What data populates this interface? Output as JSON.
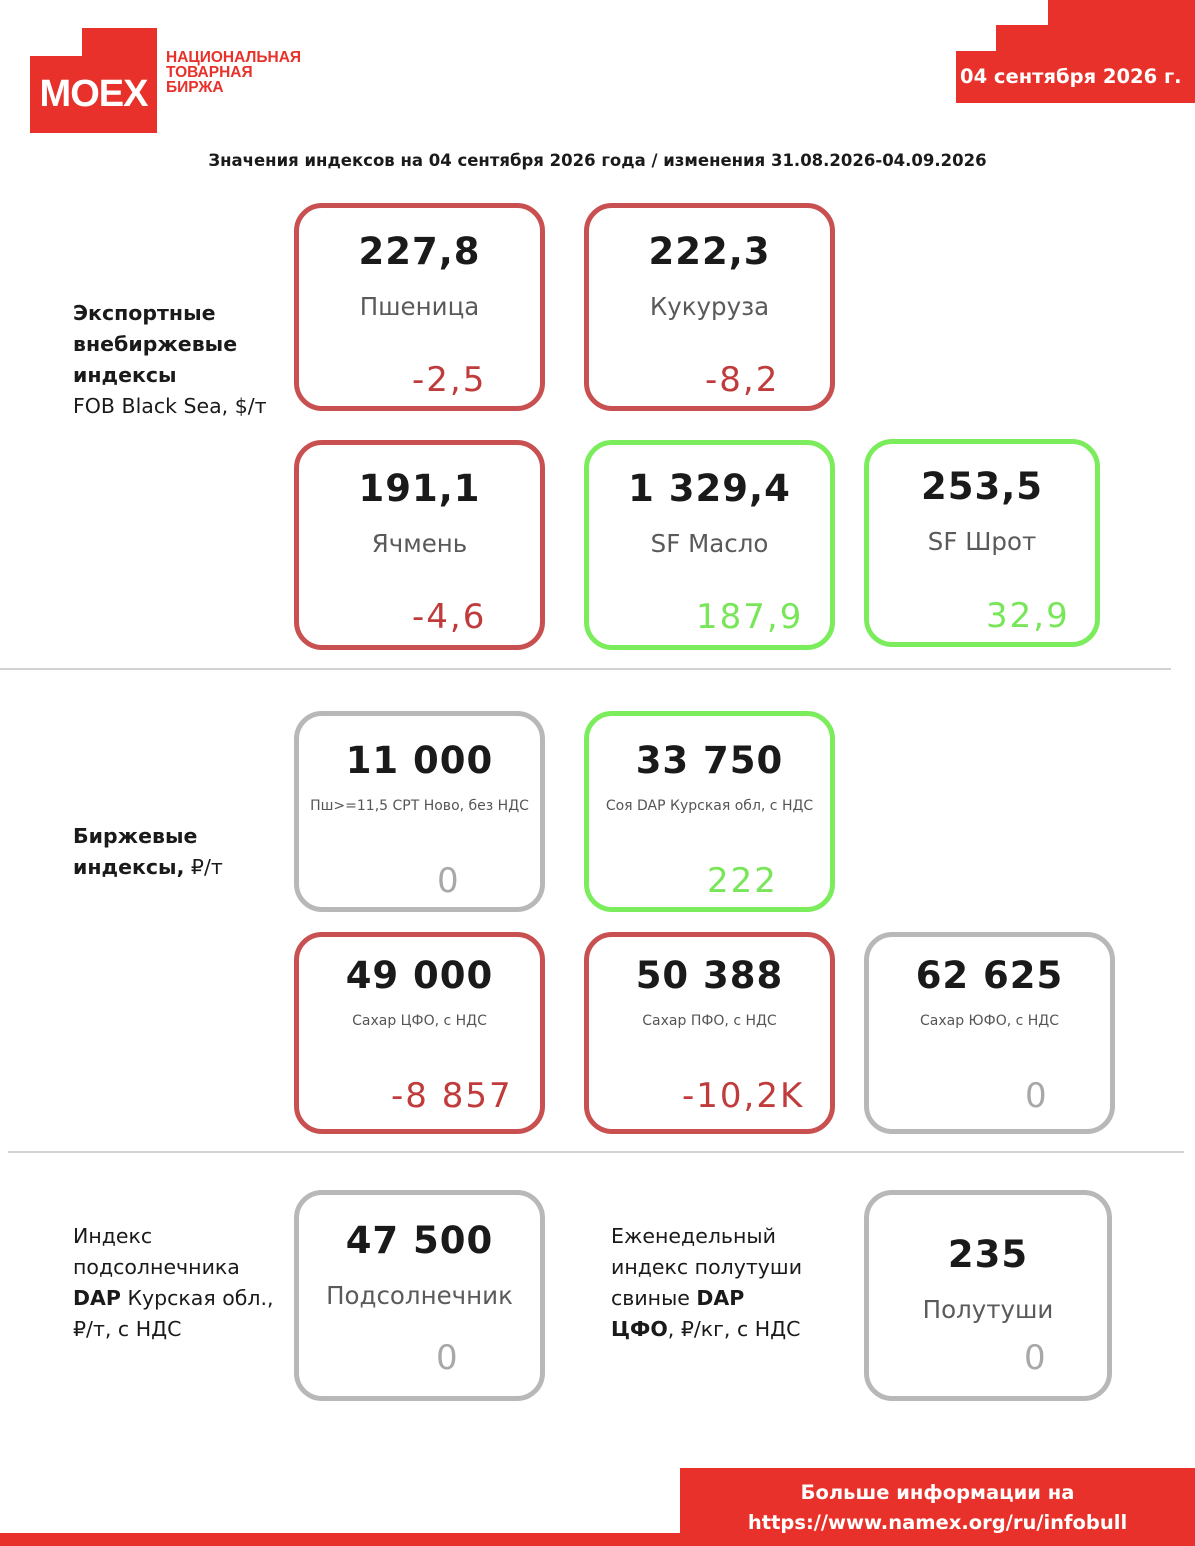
{
  "header": {
    "logo": {
      "brand": "MOEX",
      "line1": "НАЦИОНАЛЬНАЯ",
      "line2": "ТОВАРНАЯ",
      "line3": "БИРЖА"
    },
    "date": "04 сентября 2026 г."
  },
  "subtitle": "Значения индексов на 04 сентября 2026 года / изменения 31.08.2026-04.09.2026",
  "sections": {
    "export": {
      "line1": "Экспортные",
      "line2": "внебиржевые",
      "line3": "индексы",
      "line4": "FOB Black Sea, $/т"
    },
    "exchange": {
      "line1": "Биржевые",
      "line2": "индексы,",
      "unit": " ₽/т"
    },
    "sunflower": {
      "line1": "Индекс",
      "line2": "подсолнечника",
      "bold3": "DAP",
      "rest3": " Курская обл.,",
      "line4": "₽/т, с НДС"
    },
    "pork": {
      "line1": "Еженедельный",
      "line2": "индекс полутуши",
      "rest3": "свиные ",
      "bold3": "DAP",
      "bold4": "ЦФО",
      "rest4": ", ₽/кг, с НДС"
    }
  },
  "cards": {
    "wheat": {
      "value": "227,8",
      "name": "Пшеница",
      "change": "-2,5",
      "status": "down"
    },
    "corn": {
      "value": "222,3",
      "name": "Кукуруза",
      "change": "-8,2",
      "status": "down"
    },
    "barley": {
      "value": "191,1",
      "name": "Ячмень",
      "change": "-4,6",
      "status": "down"
    },
    "sf_oil": {
      "value": "1 329,4",
      "name": "SF Масло",
      "change": "187,9",
      "status": "up"
    },
    "sf_meal": {
      "value": "253,5",
      "name": "SF Шрот",
      "change": "32,9",
      "status": "up"
    },
    "wheat_ex": {
      "value": "11 000",
      "name": "Пш>=11,5 СРТ Ново, без НДС",
      "change": "0",
      "status": "flat"
    },
    "soy_ex": {
      "value": "33 750",
      "name": "Соя DAP Курская обл, с НДС",
      "change": "222",
      "status": "up"
    },
    "sugar_cfo": {
      "value": "49 000",
      "name": "Сахар ЦФО, с НДС",
      "change": "-8 857",
      "status": "down"
    },
    "sugar_pfo": {
      "value": "50 388",
      "name": "Сахар ПФО, с НДС",
      "change": "-10,2K",
      "status": "down"
    },
    "sugar_yufo": {
      "value": "62 625",
      "name": "Сахар ЮФО, с НДС",
      "change": "0",
      "status": "flat"
    },
    "sunflower": {
      "value": "47 500",
      "name": "Подсолнечник",
      "change": "0",
      "status": "flat"
    },
    "pork": {
      "value": "235",
      "name": "Полутуши",
      "change": "0",
      "status": "flat"
    }
  },
  "footer": {
    "line1": "Больше информации на",
    "line2": "https://www.namex.org/ru/infobull"
  },
  "colors": {
    "brand": "#e8312a",
    "down": "#c85050",
    "up": "#7bec5c",
    "flat": "#b8b8b8"
  }
}
